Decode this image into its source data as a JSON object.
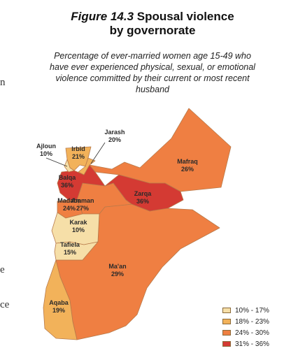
{
  "figure": {
    "number": "Figure 14.3",
    "title_line1": "Spousal violence",
    "title_line2": "by governorate",
    "subtitle_lines": [
      "Percentage of ever-married women age 15-49 who",
      "have ever experienced physical, sexual, or emotional",
      "violence committed by their current or most recent",
      "husband"
    ]
  },
  "edge_fragments": [
    "n",
    "e",
    "ce"
  ],
  "colors": {
    "range1": "#f6dfa8",
    "range2": "#f2b25a",
    "range3": "#ef7f42",
    "range4": "#d43a33",
    "border": "#b87a4a"
  },
  "regions": [
    {
      "name": "Ajloun",
      "value": "10%",
      "range": "range1"
    },
    {
      "name": "Jarash",
      "value": "20%",
      "range": "range2"
    },
    {
      "name": "Irbid",
      "value": "21%",
      "range": "range2"
    },
    {
      "name": "Mafraq",
      "value": "26%",
      "range": "range3"
    },
    {
      "name": "Balqa",
      "value": "36%",
      "range": "range4"
    },
    {
      "name": "Zarqa",
      "value": "36%",
      "range": "range4"
    },
    {
      "name": "Madaba",
      "value": "24%",
      "range": "range3"
    },
    {
      "name": "Amman",
      "value": "27%",
      "range": "range3"
    },
    {
      "name": "Karak",
      "value": "10%",
      "range": "range1"
    },
    {
      "name": "Tafiela",
      "value": "15%",
      "range": "range1"
    },
    {
      "name": "Ma'an",
      "value": "29%",
      "range": "range3"
    },
    {
      "name": "Aqaba",
      "value": "19%",
      "range": "range2"
    }
  ],
  "legend": [
    {
      "label": "10% - 17%",
      "range": "range1"
    },
    {
      "label": "18% - 23%",
      "range": "range2"
    },
    {
      "label": "24% - 30%",
      "range": "range3"
    },
    {
      "label": "31% - 36%",
      "range": "range4"
    }
  ]
}
